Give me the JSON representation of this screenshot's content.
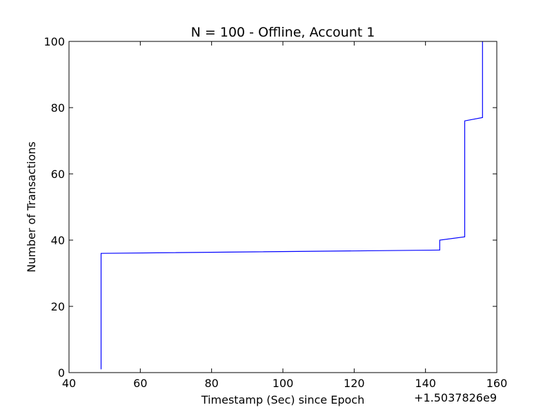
{
  "chart_data": {
    "type": "line",
    "title": "N = 100 - Offline, Account 1",
    "xlabel": "Timestamp (Sec) since Epoch",
    "ylabel": "Number of Transactions",
    "x_offset_label": "+1.5037826e9",
    "xlim": [
      40,
      160
    ],
    "ylim": [
      0,
      100
    ],
    "xticks": [
      40,
      60,
      80,
      100,
      120,
      140,
      160
    ],
    "yticks": [
      0,
      20,
      40,
      60,
      80,
      100
    ],
    "grid": false,
    "series": [
      {
        "color": "#0000ff",
        "points": [
          [
            49,
            1
          ],
          [
            49,
            36
          ],
          [
            144,
            37
          ],
          [
            144,
            40
          ],
          [
            151,
            41
          ],
          [
            151,
            76
          ],
          [
            156,
            77
          ],
          [
            156,
            100
          ]
        ]
      }
    ]
  }
}
